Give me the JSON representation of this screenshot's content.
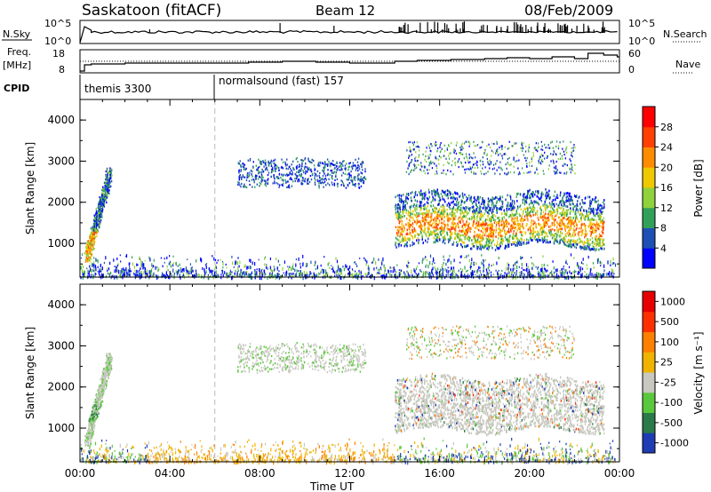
{
  "header": {
    "station": "Saskatoon (fitACF)",
    "beam": "Beam 12",
    "date": "08/Feb/2009"
  },
  "top_panels": {
    "nsky_label": "N.Sky",
    "nsearch_label": "N.Search",
    "freq_label": "Freq.",
    "freq_unit": "[MHz]",
    "nave_label": "Nave",
    "cpid_label": "CPID",
    "nsky_ticks": [
      "10^5",
      "10^0"
    ],
    "nsearch_ticks": [
      "10^5",
      "10^0"
    ],
    "freq_ticks": [
      "18",
      "8"
    ],
    "nave_ticks": [
      "60",
      "0"
    ]
  },
  "cpid": [
    {
      "label": "themis 3300",
      "start_hour": 0
    },
    {
      "label": "normalsound (fast) 157",
      "start_hour": 6
    }
  ],
  "chart_data": [
    {
      "type": "heatmap",
      "title": "Power",
      "xlabel": "Time UT",
      "ylabel": "Slant Range [km]",
      "xlim": [
        0,
        24
      ],
      "ylim": [
        180,
        4500
      ],
      "x_ticks": [
        "00:00",
        "04:00",
        "08:00",
        "12:00",
        "16:00",
        "20:00",
        "00:00"
      ],
      "y_ticks": [
        "1000",
        "2000",
        "3000",
        "4000"
      ],
      "colorbar": {
        "label": "Power [dB]",
        "ticks": [
          "4",
          "8",
          "12",
          "16",
          "20",
          "24",
          "28"
        ],
        "range": [
          0,
          30
        ]
      },
      "regions": [
        {
          "name": "early arc",
          "hours": [
            0.3,
            1.3
          ],
          "range_km": [
            700,
            2800
          ],
          "value_db": 14
        },
        {
          "name": "far-range patch",
          "hours": [
            7.0,
            12.7
          ],
          "range_km": [
            2400,
            3100
          ],
          "value_db": 6
        },
        {
          "name": "near-range clutter",
          "hours": [
            0,
            23.8
          ],
          "range_km": [
            200,
            600
          ],
          "value_db": 5
        },
        {
          "name": "main band",
          "hours": [
            14.0,
            23.3
          ],
          "range_km": [
            900,
            2200
          ],
          "value_db": 18
        },
        {
          "name": "upper band",
          "hours": [
            14.5,
            22.0
          ],
          "range_km": [
            2700,
            3500
          ],
          "value_db": 7
        }
      ]
    },
    {
      "type": "heatmap",
      "title": "Velocity",
      "xlabel": "Time UT",
      "ylabel": "Slant Range [km]",
      "xlim": [
        0,
        24
      ],
      "ylim": [
        180,
        4500
      ],
      "x_ticks": [
        "00:00",
        "04:00",
        "08:00",
        "12:00",
        "16:00",
        "20:00",
        "00:00"
      ],
      "y_ticks": [
        "1000",
        "2000",
        "3000",
        "4000"
      ],
      "colorbar": {
        "label": "Velocity [m s⁻¹]",
        "ticks": [
          "1000",
          "500",
          "100",
          "25",
          "-25",
          "-100",
          "-500",
          "-1000"
        ]
      }
    }
  ],
  "colors": {
    "power_scale": [
      "#0000ff",
      "#1e4fb4",
      "#32a05a",
      "#8fd23c",
      "#f0c800",
      "#ff8c00",
      "#ff4000",
      "#ff0000"
    ],
    "velocity_scale": [
      "#1e3cb4",
      "#2a7a4a",
      "#5ac83c",
      "#c8c8c0",
      "#f0b400",
      "#ff8000",
      "#ff3000",
      "#e60000"
    ],
    "ground_scatter": "#c8c8c0"
  }
}
